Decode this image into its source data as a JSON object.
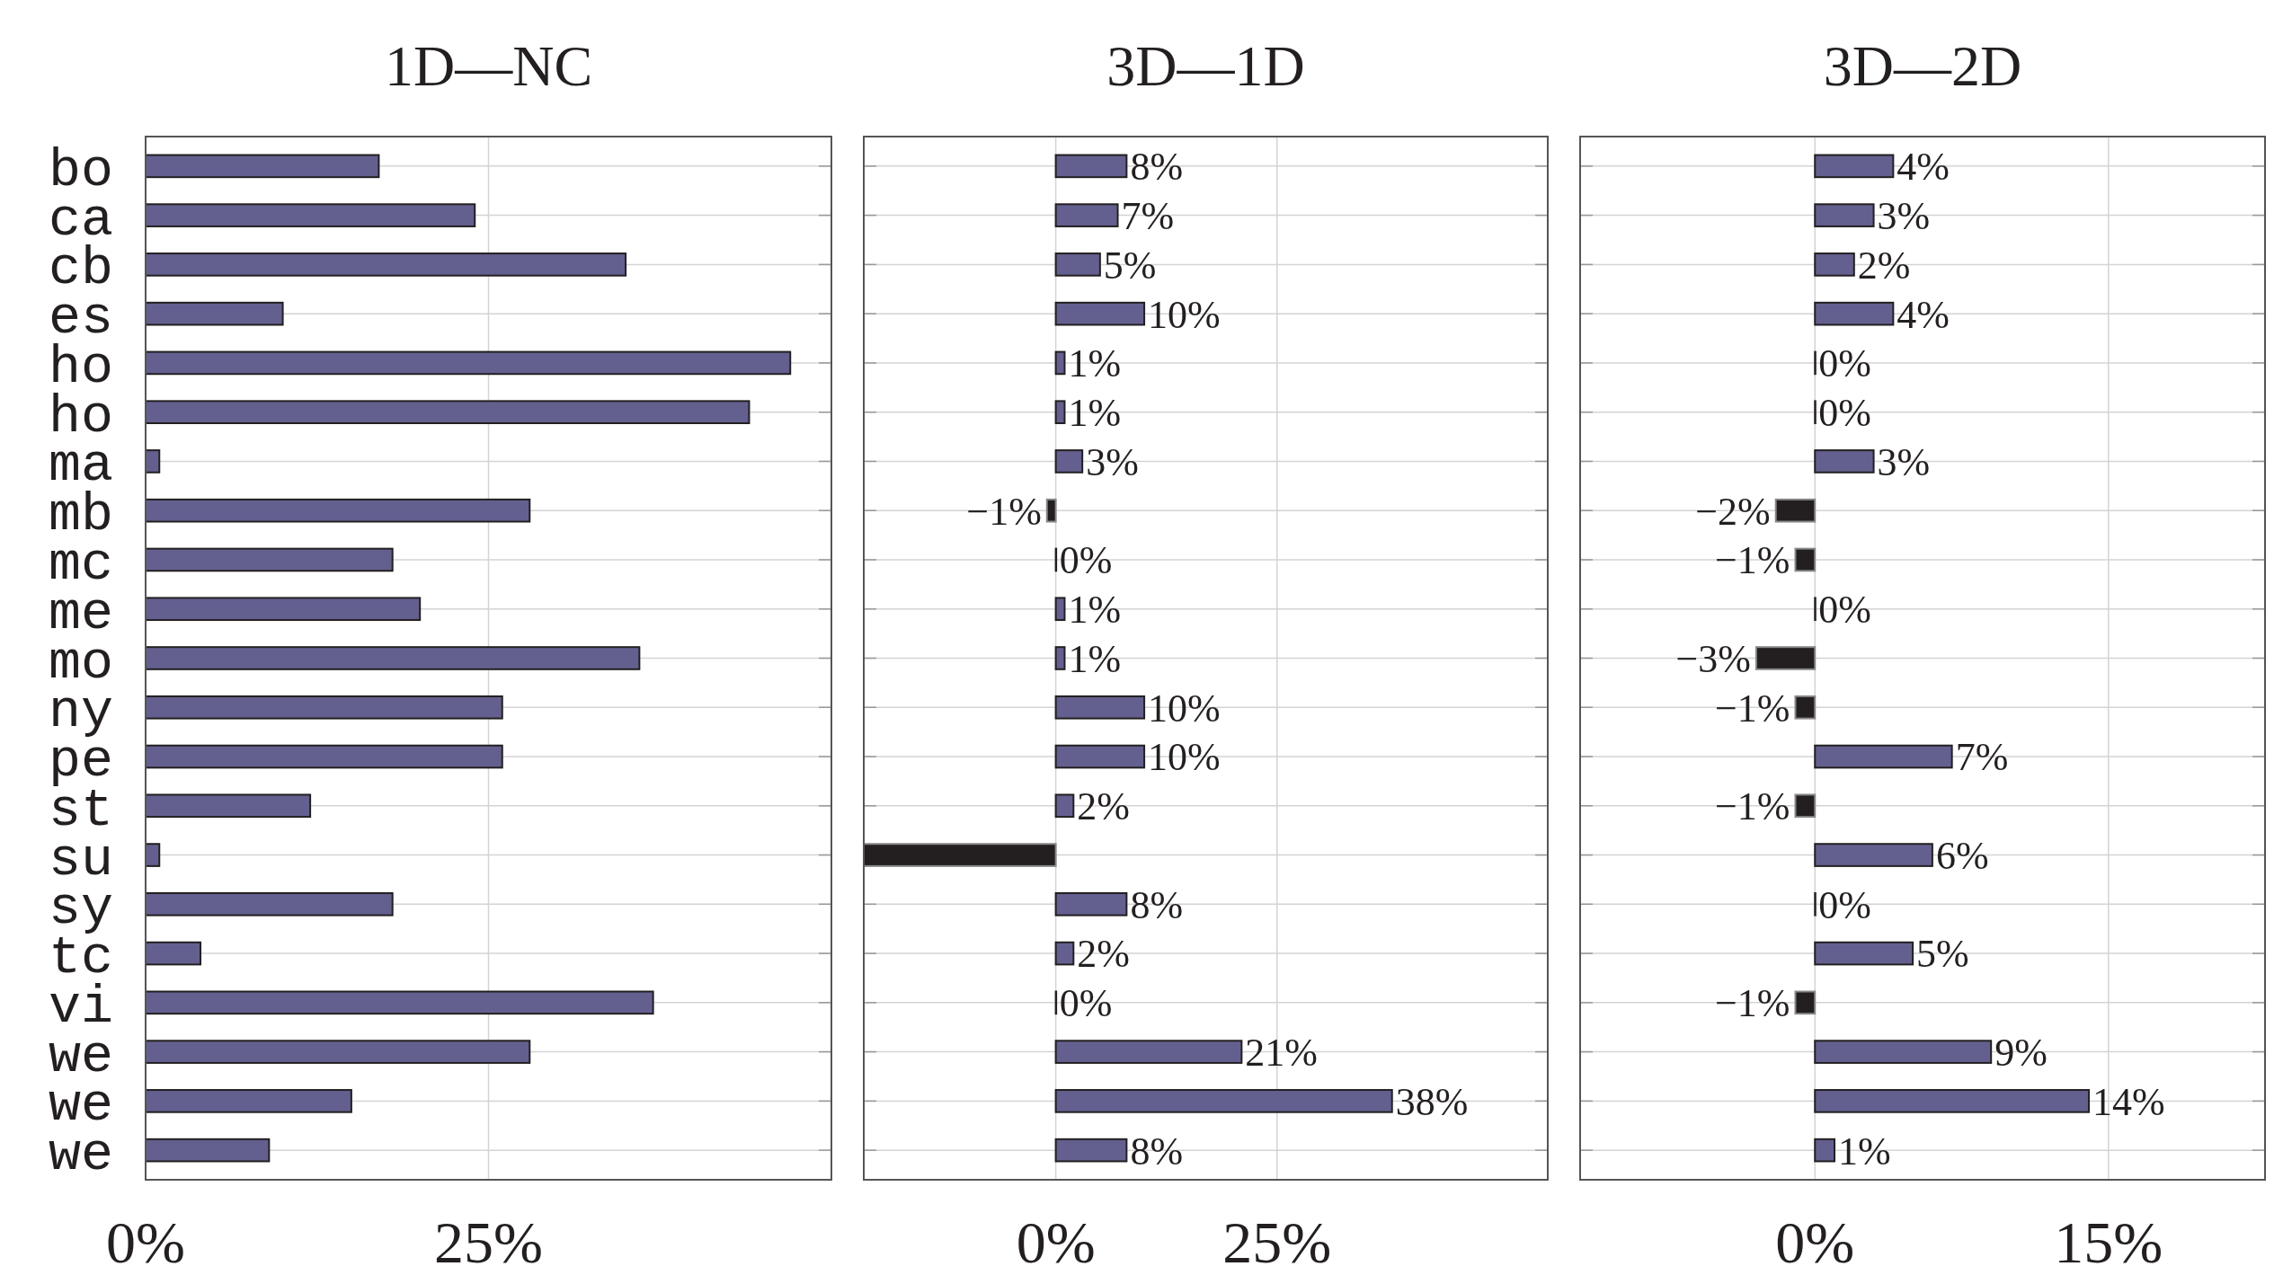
{
  "chart_data": [
    {
      "type": "bar",
      "orientation": "horizontal",
      "title": "1D—NC",
      "categories": [
        "bo",
        "ca",
        "cb",
        "es",
        "ho",
        "ho",
        "ma",
        "mb",
        "mc",
        "me",
        "mo",
        "ny",
        "pe",
        "st",
        "su",
        "sy",
        "tc",
        "vi",
        "we",
        "we",
        "we"
      ],
      "values": [
        17,
        24,
        35,
        10,
        47,
        44,
        1,
        28,
        18,
        20,
        36,
        26,
        26,
        12,
        1,
        18,
        4,
        37,
        28,
        15,
        9
      ],
      "colors": [
        "#636090",
        "#636090",
        "#636090",
        "#636090",
        "#636090",
        "#636090",
        "#636090",
        "#636090",
        "#636090",
        "#636090",
        "#636090",
        "#636090",
        "#636090",
        "#636090",
        "#636090",
        "#636090",
        "#636090",
        "#636090",
        "#636090",
        "#636090",
        "#636090"
      ],
      "xlim": [
        0,
        50
      ],
      "xticks": [
        {
          "value": 0,
          "label": "0%"
        },
        {
          "value": 25,
          "label": "25%"
        }
      ],
      "grid": true
    },
    {
      "type": "bar",
      "orientation": "horizontal",
      "title": "3D—1D",
      "categories": [
        null,
        null,
        null,
        null,
        null,
        null,
        null,
        null,
        null,
        null,
        null,
        null,
        null,
        null,
        null,
        null,
        null,
        null,
        null,
        null,
        null
      ],
      "values": [
        8,
        7,
        5,
        10,
        1,
        1,
        3,
        -1,
        0,
        1,
        1,
        10,
        10,
        2,
        -21.7,
        8,
        2,
        0,
        21,
        38,
        8
      ],
      "value_labels": [
        "8%",
        "7%",
        "5%",
        "10%",
        "1%",
        "1%",
        "3%",
        "−1%",
        "0%",
        "1%",
        "1%",
        "10%",
        "10%",
        "2%",
        null,
        "8%",
        "2%",
        "0%",
        "21%",
        "38%",
        "8%"
      ],
      "colors": [
        "#636090",
        "#636090",
        "#636090",
        "#636090",
        "#636090",
        "#636090",
        "#636090",
        "#231f20",
        "#636090",
        "#636090",
        "#636090",
        "#636090",
        "#636090",
        "#636090",
        "#231f20",
        "#636090",
        "#636090",
        "#636090",
        "#636090",
        "#636090",
        "#636090"
      ],
      "xlim": [
        -21.7,
        55.6
      ],
      "xticks": [
        {
          "value": 0,
          "label": "0%"
        },
        {
          "value": 25,
          "label": "25%"
        }
      ],
      "grid": true
    },
    {
      "type": "bar",
      "orientation": "horizontal",
      "title": "3D—2D",
      "categories": [
        null,
        null,
        null,
        null,
        null,
        null,
        null,
        null,
        null,
        null,
        null,
        null,
        null,
        null,
        null,
        null,
        null,
        null,
        null,
        null,
        null
      ],
      "values": [
        4,
        3,
        2,
        4,
        0,
        0,
        3,
        -2,
        -1,
        0,
        -3,
        -1,
        7,
        -1,
        6,
        0,
        5,
        -1,
        9,
        14,
        1
      ],
      "value_labels": [
        "4%",
        "3%",
        "2%",
        "4%",
        "0%",
        "0%",
        "3%",
        "−2%",
        "−1%",
        "0%",
        "−3%",
        "−1%",
        "7%",
        "−1%",
        "6%",
        "0%",
        "5%",
        "−1%",
        "9%",
        "14%",
        "1%"
      ],
      "colors": [
        "#636090",
        "#636090",
        "#636090",
        "#636090",
        "#636090",
        "#636090",
        "#636090",
        "#231f20",
        "#231f20",
        "#636090",
        "#231f20",
        "#231f20",
        "#636090",
        "#231f20",
        "#636090",
        "#636090",
        "#636090",
        "#231f20",
        "#636090",
        "#636090",
        "#636090"
      ],
      "xlim": [
        -12,
        23
      ],
      "xticks": [
        {
          "value": 0,
          "label": "0%"
        },
        {
          "value": 15,
          "label": "15%"
        }
      ],
      "grid": true
    }
  ]
}
